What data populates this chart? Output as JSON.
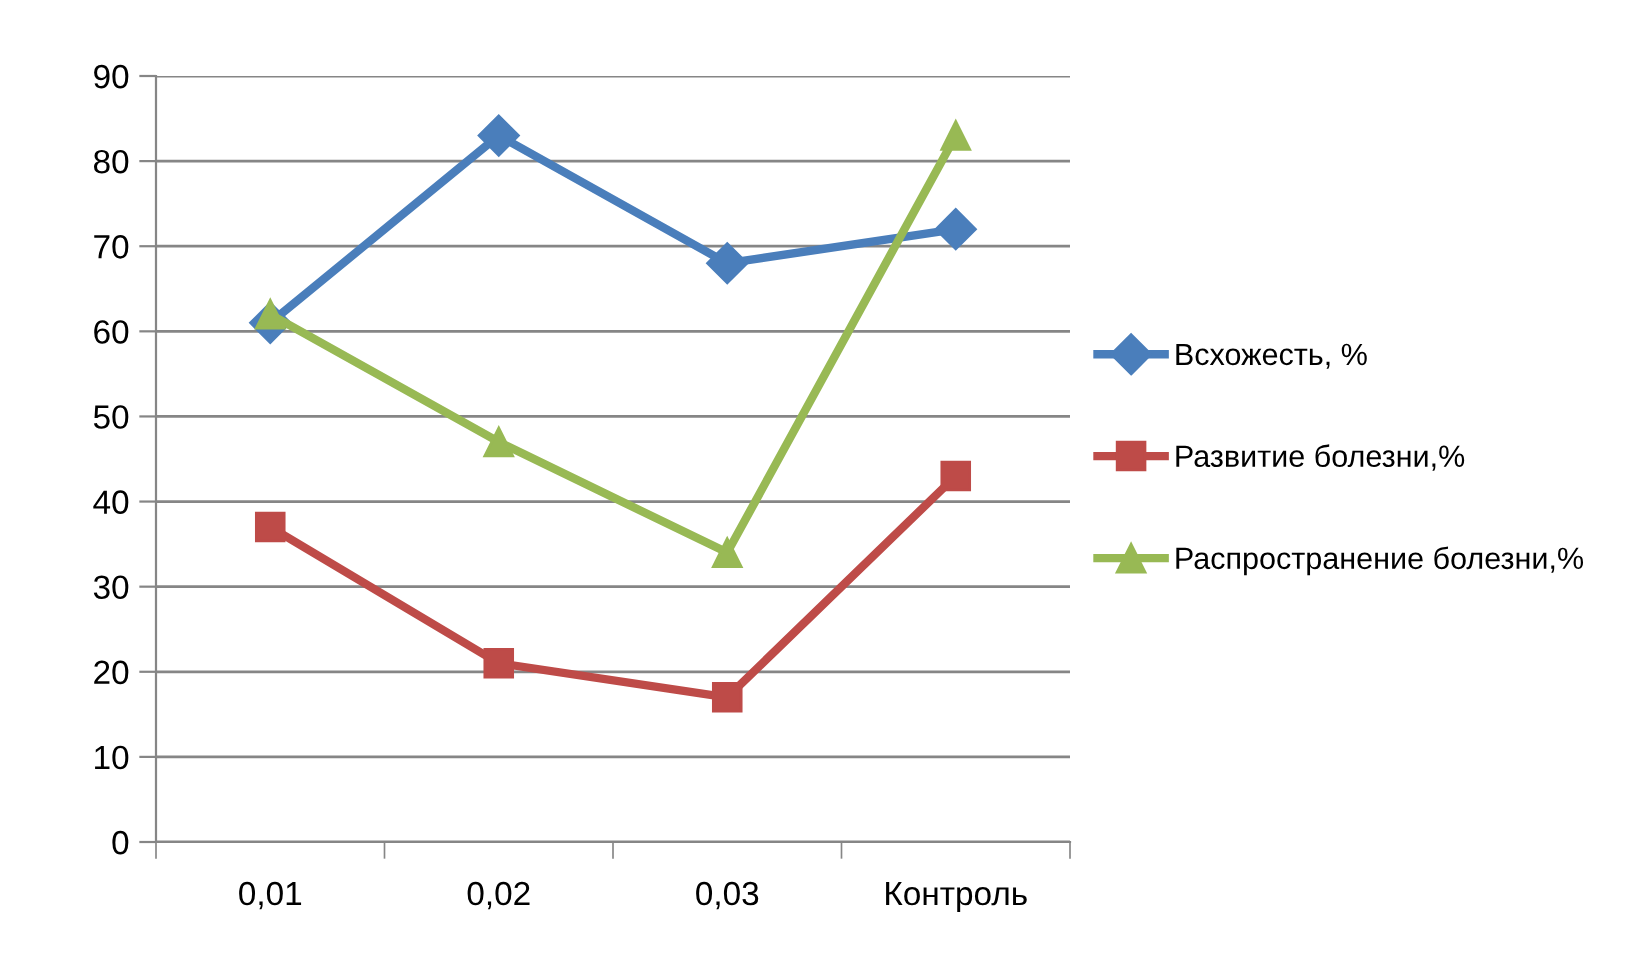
{
  "chart_data": {
    "type": "line",
    "categories": [
      "0,01",
      "0,02",
      "0,03",
      "Контроль"
    ],
    "series": [
      {
        "name": "Всхожесть, %",
        "color": "#4a7ebb",
        "marker": "diamond",
        "values": [
          61,
          83,
          68,
          72
        ]
      },
      {
        "name": "Развитие болезни,%",
        "color": "#be4b48",
        "marker": "square",
        "values": [
          37,
          21,
          17,
          43
        ]
      },
      {
        "name": "Распространение болезни,%",
        "color": "#98b954",
        "marker": "triangle",
        "values": [
          62,
          47,
          34,
          83
        ]
      }
    ],
    "ylim": [
      0,
      90
    ],
    "yticks": [
      0,
      10,
      20,
      30,
      40,
      50,
      60,
      70,
      80,
      90
    ],
    "grid": "y",
    "legend": "right"
  }
}
